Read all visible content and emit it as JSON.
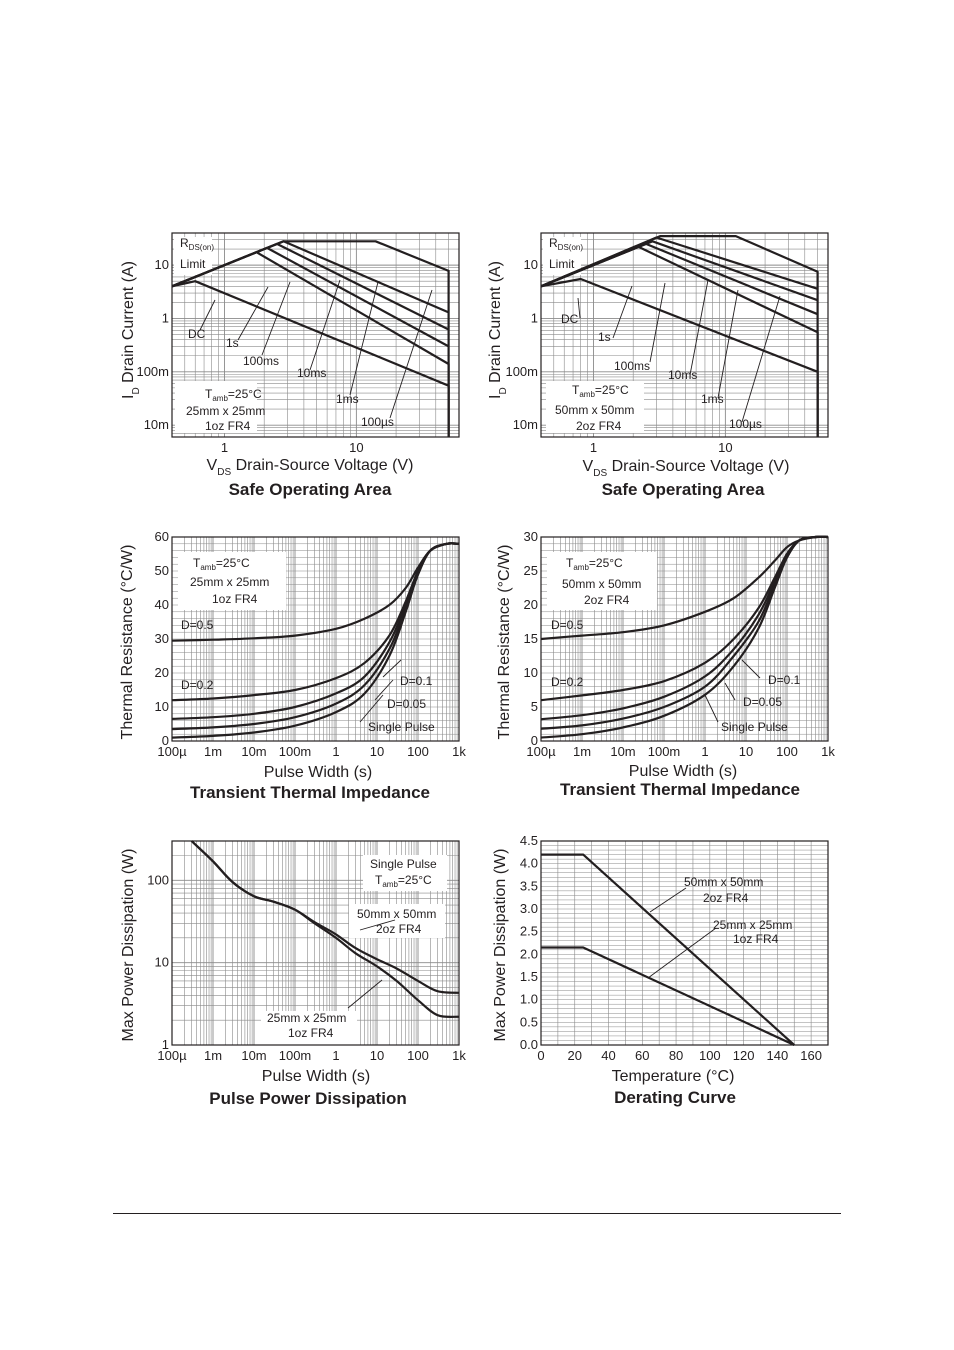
{
  "colors": {
    "ink": "#231f20",
    "grid": "#8a8a8a",
    "background": "#ffffff"
  },
  "chart_data": [
    {
      "type": "line",
      "title": "Safe Operating Area",
      "xlabel": "Drain-Source Voltage (V)",
      "xsym": "V",
      "xsub": "DS",
      "ylabel": "Drain Current (A)",
      "ysym": "I",
      "ysub": "D",
      "xscale": "log",
      "yscale": "log",
      "xlim": [
        0.4,
        60
      ],
      "ylim": [
        0.006,
        40
      ],
      "xticks": [
        {
          "v": 1,
          "label": "1"
        },
        {
          "v": 10,
          "label": "10"
        }
      ],
      "yticks": [
        {
          "v": 10,
          "label": "10"
        },
        {
          "v": 1,
          "label": "1"
        },
        {
          "v": 0.1,
          "label": "100m"
        },
        {
          "v": 0.01,
          "label": "10m"
        }
      ],
      "grid": true,
      "series": [
        {
          "name": "DC",
          "x": [
            0.4,
            0.6,
            50,
            50
          ],
          "y": [
            4,
            5,
            0.055,
            0.006
          ]
        },
        {
          "name": "1s",
          "x": [
            0.4,
            1.75,
            50,
            50
          ],
          "y": [
            4,
            17.5,
            0.14,
            0.006
          ]
        },
        {
          "name": "100ms",
          "x": [
            0.4,
            2.1,
            50
          ],
          "y": [
            4,
            21,
            0.3
          ]
        },
        {
          "name": "10ms",
          "x": [
            0.4,
            2.5,
            50
          ],
          "y": [
            4,
            25,
            0.62
          ]
        },
        {
          "name": "1ms",
          "x": [
            0.4,
            2.8,
            50
          ],
          "y": [
            4,
            28,
            1.3
          ]
        },
        {
          "name": "100µs",
          "x": [
            0.4,
            2.8,
            14,
            50,
            50
          ],
          "y": [
            4,
            28,
            28,
            7.8,
            0.006
          ]
        }
      ],
      "annotations": [
        {
          "text": "R",
          "sub": "DS(on)"
        },
        {
          "text": "Limit"
        },
        {
          "text": "DC"
        },
        {
          "text": "1s"
        },
        {
          "text": "100ms"
        },
        {
          "text": "10ms"
        },
        {
          "text": "1ms"
        },
        {
          "text": "100µs"
        },
        {
          "text": "T",
          "sub": "amb",
          "after": "=25°C"
        },
        {
          "text": "25mm x 25mm"
        },
        {
          "text": "1oz FR4"
        }
      ]
    },
    {
      "type": "line",
      "title": "Safe Operating Area",
      "xlabel": "Drain-Source Voltage (V)",
      "xsym": "V",
      "xsub": "DS",
      "ylabel": "Drain Current (A)",
      "ysym": "I",
      "ysub": "D",
      "xscale": "log",
      "yscale": "log",
      "xlim": [
        0.4,
        60
      ],
      "ylim": [
        0.006,
        40
      ],
      "xticks": [
        {
          "v": 1,
          "label": "1"
        },
        {
          "v": 10,
          "label": "10"
        }
      ],
      "yticks": [
        {
          "v": 10,
          "label": "10"
        },
        {
          "v": 1,
          "label": "1"
        },
        {
          "v": 0.1,
          "label": "100m"
        },
        {
          "v": 0.01,
          "label": "10m"
        }
      ],
      "grid": true,
      "series": [
        {
          "name": "DC",
          "x": [
            0.4,
            0.8,
            50,
            50
          ],
          "y": [
            4,
            5.5,
            0.1,
            0.006
          ]
        },
        {
          "name": "1s",
          "x": [
            0.4,
            2.2,
            50,
            50
          ],
          "y": [
            4,
            22,
            0.55,
            0.006
          ]
        },
        {
          "name": "100ms",
          "x": [
            0.4,
            2.5,
            50
          ],
          "y": [
            4,
            25,
            1.2
          ]
        },
        {
          "name": "10ms",
          "x": [
            0.4,
            2.8,
            50
          ],
          "y": [
            4,
            28,
            2.2
          ]
        },
        {
          "name": "1ms",
          "x": [
            0.4,
            3.0,
            50
          ],
          "y": [
            4,
            33,
            3.6
          ]
        },
        {
          "name": "100µs",
          "x": [
            0.4,
            3.2,
            12,
            50,
            50
          ],
          "y": [
            4,
            35,
            35,
            7.5,
            0.006
          ]
        }
      ],
      "annotations": [
        {
          "text": "R",
          "sub": "DS(on)"
        },
        {
          "text": "Limit"
        },
        {
          "text": "DC"
        },
        {
          "text": "1s"
        },
        {
          "text": "100ms"
        },
        {
          "text": "10ms"
        },
        {
          "text": "1ms"
        },
        {
          "text": "100µs"
        },
        {
          "text": "T",
          "sub": "amb",
          "after": "=25°C"
        },
        {
          "text": "50mm x 50mm"
        },
        {
          "text": "2oz FR4"
        }
      ]
    },
    {
      "type": "line",
      "title": "Transient Thermal Impedance",
      "xlabel": "Pulse Width (s)",
      "ylabel": "Thermal Resistance (°C/W)",
      "xscale": "log",
      "yscale": "linear",
      "xlim": [
        0.0001,
        1000
      ],
      "ylim": [
        0,
        60
      ],
      "xticks": [
        {
          "v": 0.0001,
          "label": "100µ"
        },
        {
          "v": 0.001,
          "label": "1m"
        },
        {
          "v": 0.01,
          "label": "10m"
        },
        {
          "v": 0.1,
          "label": "100m"
        },
        {
          "v": 1,
          "label": "1"
        },
        {
          "v": 10,
          "label": "10"
        },
        {
          "v": 100,
          "label": "100"
        },
        {
          "v": 1000,
          "label": "1k"
        }
      ],
      "yticks": [
        {
          "v": 0,
          "label": "0"
        },
        {
          "v": 10,
          "label": "10"
        },
        {
          "v": 20,
          "label": "20"
        },
        {
          "v": 30,
          "label": "30"
        },
        {
          "v": 40,
          "label": "40"
        },
        {
          "v": 50,
          "label": "50"
        },
        {
          "v": 60,
          "label": "60"
        }
      ],
      "grid": true,
      "series": [
        {
          "name": "D=0.5",
          "x": [
            0.0001,
            0.001,
            0.01,
            0.1,
            1,
            5,
            20,
            50,
            100,
            200,
            500,
            1000
          ],
          "y": [
            29.5,
            29.8,
            30.2,
            31,
            33,
            36,
            40,
            45,
            51,
            56,
            58,
            58
          ]
        },
        {
          "name": "D=0.2",
          "x": [
            0.0001,
            0.001,
            0.01,
            0.1,
            1,
            5,
            20,
            50,
            100,
            200,
            500,
            1000
          ],
          "y": [
            12,
            12.5,
            13.5,
            15,
            18.5,
            23,
            31,
            41,
            50,
            56,
            58,
            58
          ]
        },
        {
          "name": "D=0.1",
          "x": [
            0.0001,
            0.001,
            0.01,
            0.1,
            1,
            5,
            20,
            50,
            100,
            200,
            500,
            1000
          ],
          "y": [
            6.5,
            7,
            8,
            10,
            14,
            19,
            29,
            40,
            50,
            56,
            58,
            58
          ]
        },
        {
          "name": "D=0.05",
          "x": [
            0.0001,
            0.001,
            0.01,
            0.1,
            1,
            5,
            20,
            50,
            100,
            200,
            500,
            1000
          ],
          "y": [
            3.5,
            4,
            5,
            7,
            11,
            16.5,
            27,
            39,
            49,
            56,
            58,
            58
          ]
        },
        {
          "name": "Single Pulse",
          "x": [
            0.0001,
            0.001,
            0.01,
            0.1,
            1,
            5,
            20,
            50,
            100,
            200,
            500,
            1000
          ],
          "y": [
            1,
            1.5,
            2.5,
            4.5,
            8.5,
            14,
            25,
            38,
            49,
            56,
            58,
            58
          ]
        }
      ],
      "annotations": [
        {
          "text": "T",
          "sub": "amb",
          "after": "=25°C"
        },
        {
          "text": "25mm x 25mm"
        },
        {
          "text": "1oz FR4"
        },
        {
          "text": "D=0.5"
        },
        {
          "text": "D=0.2"
        },
        {
          "text": "D=0.1"
        },
        {
          "text": "D=0.05"
        },
        {
          "text": "Single Pulse"
        }
      ]
    },
    {
      "type": "line",
      "title": "Transient Thermal Impedance",
      "xlabel": "Pulse Width (s)",
      "ylabel": "Thermal Resistance (°C/W)",
      "xscale": "log",
      "yscale": "linear",
      "xlim": [
        0.0001,
        1000
      ],
      "ylim": [
        0,
        30
      ],
      "xticks": [
        {
          "v": 0.0001,
          "label": "100µ"
        },
        {
          "v": 0.001,
          "label": "1m"
        },
        {
          "v": 0.01,
          "label": "10m"
        },
        {
          "v": 0.1,
          "label": "100m"
        },
        {
          "v": 1,
          "label": "1"
        },
        {
          "v": 10,
          "label": "10"
        },
        {
          "v": 100,
          "label": "100"
        },
        {
          "v": 1000,
          "label": "1k"
        }
      ],
      "yticks": [
        {
          "v": 0,
          "label": "0"
        },
        {
          "v": 5,
          "label": "5"
        },
        {
          "v": 10,
          "label": "10"
        },
        {
          "v": 15,
          "label": "15"
        },
        {
          "v": 20,
          "label": "20"
        },
        {
          "v": 25,
          "label": "25"
        },
        {
          "v": 30,
          "label": "30"
        }
      ],
      "grid": true,
      "series": [
        {
          "name": "D=0.5",
          "x": [
            0.0001,
            0.001,
            0.01,
            0.1,
            1,
            5,
            20,
            50,
            100,
            200,
            500,
            1000
          ],
          "y": [
            15,
            15.5,
            16,
            17,
            19,
            21,
            24,
            26.5,
            28.5,
            29.5,
            30,
            30
          ]
        },
        {
          "name": "D=0.2",
          "x": [
            0.0001,
            0.001,
            0.01,
            0.1,
            1,
            5,
            20,
            50,
            100,
            200,
            500,
            1000
          ],
          "y": [
            6,
            6.7,
            7.5,
            8.8,
            11.5,
            15,
            19.5,
            24,
            27.5,
            29.5,
            30,
            30
          ]
        },
        {
          "name": "D=0.1",
          "x": [
            0.0001,
            0.001,
            0.01,
            0.1,
            1,
            5,
            20,
            50,
            100,
            200,
            500,
            1000
          ],
          "y": [
            3.2,
            3.8,
            4.8,
            6.5,
            9.5,
            13.5,
            18.5,
            23.5,
            27.5,
            29.5,
            30,
            30
          ]
        },
        {
          "name": "D=0.05",
          "x": [
            0.0001,
            0.001,
            0.01,
            0.1,
            1,
            5,
            20,
            50,
            100,
            200,
            500,
            1000
          ],
          "y": [
            1.8,
            2.3,
            3.3,
            5,
            8,
            12.5,
            17.5,
            23,
            27,
            29.5,
            30,
            30
          ]
        },
        {
          "name": "Single Pulse",
          "x": [
            0.0001,
            0.001,
            0.01,
            0.1,
            1,
            5,
            20,
            50,
            100,
            200,
            500,
            1000
          ],
          "y": [
            0.5,
            1,
            2,
            3.7,
            6.8,
            11,
            16.5,
            22.5,
            27,
            29.5,
            30,
            30
          ]
        }
      ],
      "annotations": [
        {
          "text": "T",
          "sub": "amb",
          "after": "=25°C"
        },
        {
          "text": "50mm x 50mm"
        },
        {
          "text": "2oz FR4"
        },
        {
          "text": "D=0.5"
        },
        {
          "text": "D=0.2"
        },
        {
          "text": "D=0.1"
        },
        {
          "text": "D=0.05"
        },
        {
          "text": "Single Pulse"
        }
      ]
    },
    {
      "type": "line",
      "title": "Pulse Power Dissipation",
      "xlabel": "Pulse Width (s)",
      "ylabel": "Max Power Dissipation (W)",
      "xscale": "log",
      "yscale": "log",
      "xlim": [
        0.0001,
        1000
      ],
      "ylim": [
        1,
        300
      ],
      "xticks": [
        {
          "v": 0.0001,
          "label": "100µ"
        },
        {
          "v": 0.001,
          "label": "1m"
        },
        {
          "v": 0.01,
          "label": "10m"
        },
        {
          "v": 0.1,
          "label": "100m"
        },
        {
          "v": 1,
          "label": "1"
        },
        {
          "v": 10,
          "label": "10"
        },
        {
          "v": 100,
          "label": "100"
        },
        {
          "v": 1000,
          "label": "1k"
        }
      ],
      "yticks": [
        {
          "v": 1,
          "label": "1"
        },
        {
          "v": 10,
          "label": "10"
        },
        {
          "v": 100,
          "label": "100"
        }
      ],
      "grid": true,
      "series": [
        {
          "name": "50mm x 50mm 2oz FR4",
          "x": [
            0.0003,
            0.001,
            0.003,
            0.01,
            0.03,
            0.1,
            0.3,
            1,
            3,
            10,
            30,
            100,
            300,
            1000
          ],
          "y": [
            300,
            170,
            95,
            64,
            55,
            44,
            31,
            22,
            15,
            11,
            8.5,
            6,
            4.5,
            4.3
          ]
        },
        {
          "name": "25mm x 25mm 1oz FR4",
          "x": [
            0.0003,
            0.001,
            0.003,
            0.01,
            0.03,
            0.1,
            0.3,
            1,
            3,
            10,
            30,
            100,
            300,
            1000
          ],
          "y": [
            300,
            170,
            95,
            64,
            55,
            44,
            30,
            20,
            13,
            9,
            6,
            3.5,
            2.3,
            2.2
          ]
        }
      ],
      "annotations": [
        {
          "text": "Single Pulse"
        },
        {
          "text": "T",
          "sub": "amb",
          "after": "=25°C"
        },
        {
          "text": "50mm x 50mm"
        },
        {
          "text": "2oz FR4"
        },
        {
          "text": "25mm x 25mm"
        },
        {
          "text": "1oz FR4"
        }
      ]
    },
    {
      "type": "line",
      "title": "Derating Curve",
      "xlabel": "Temperature (°C)",
      "ylabel": "Max Power Dissipation (W)",
      "xscale": "linear",
      "yscale": "linear",
      "xlim": [
        0,
        170
      ],
      "ylim": [
        0,
        4.5
      ],
      "xticks": [
        {
          "v": 0,
          "label": "0"
        },
        {
          "v": 20,
          "label": "20"
        },
        {
          "v": 40,
          "label": "40"
        },
        {
          "v": 60,
          "label": "60"
        },
        {
          "v": 80,
          "label": "80"
        },
        {
          "v": 100,
          "label": "100"
        },
        {
          "v": 120,
          "label": "120"
        },
        {
          "v": 140,
          "label": "140"
        },
        {
          "v": 160,
          "label": "160"
        }
      ],
      "yticks": [
        {
          "v": 0,
          "label": "0.0"
        },
        {
          "v": 0.5,
          "label": "0.5"
        },
        {
          "v": 1,
          "label": "1.0"
        },
        {
          "v": 1.5,
          "label": "1.5"
        },
        {
          "v": 2,
          "label": "2.0"
        },
        {
          "v": 2.5,
          "label": "2.5"
        },
        {
          "v": 3,
          "label": "3.0"
        },
        {
          "v": 3.5,
          "label": "3.5"
        },
        {
          "v": 4,
          "label": "4.0"
        },
        {
          "v": 4.5,
          "label": "4.5"
        }
      ],
      "grid": true,
      "series": [
        {
          "name": "50mm x 50mm 2oz FR4",
          "x": [
            0,
            25,
            150
          ],
          "y": [
            4.2,
            4.2,
            0
          ]
        },
        {
          "name": "25mm x 25mm 1oz FR4",
          "x": [
            0,
            25,
            150
          ],
          "y": [
            2.15,
            2.15,
            0
          ]
        }
      ],
      "annotations": [
        {
          "text": "50mm x 50mm"
        },
        {
          "text": "2oz FR4"
        },
        {
          "text": "25mm x 25mm"
        },
        {
          "text": "1oz FR4"
        }
      ]
    }
  ]
}
